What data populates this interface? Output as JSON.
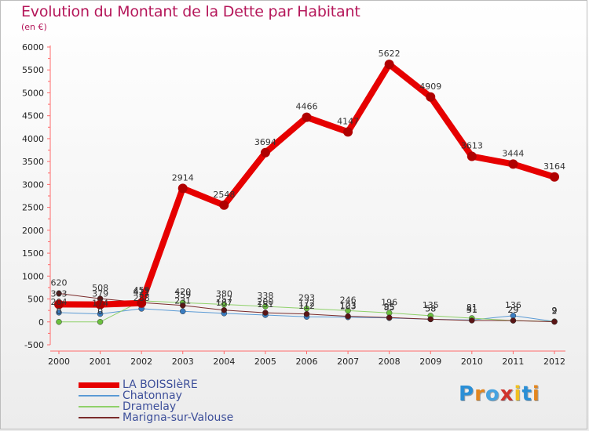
{
  "title": "Evolution du Montant de la Dette par Habitant",
  "unit": "(en €)",
  "logo": {
    "text": "Proxiti",
    "colors": [
      "#2a8fd6",
      "#e3861f",
      "#46a3e0",
      "#d0342c",
      "#f0c020",
      "#2a8fd6",
      "#e3861f"
    ]
  },
  "chart_data": {
    "type": "line",
    "title": "Evolution du Montant de la Dette par Habitant",
    "ylabel": "(en €)",
    "xlabel": "",
    "ylim": [
      -500,
      6000
    ],
    "yticks": [
      -500,
      0,
      500,
      1000,
      1500,
      2000,
      2500,
      3000,
      3500,
      4000,
      4500,
      5000,
      5500,
      6000
    ],
    "categories": [
      "2000",
      "2001",
      "2002",
      "2003",
      "2004",
      "2005",
      "2006",
      "2007",
      "2008",
      "2009",
      "2010",
      "2011",
      "2012"
    ],
    "grid": false,
    "legend": "bottom-left",
    "series": [
      {
        "name": "LA BOISSIèRE",
        "color": "#e60000",
        "marker": "#b00000",
        "width": 8,
        "values": [
          383,
          379,
          411,
          2914,
          2548,
          3694,
          4466,
          4147,
          5622,
          4909,
          3613,
          3444,
          3164
        ],
        "labels": [
          "383",
          "379",
          "411",
          "2914",
          "2548",
          "3694",
          "4466",
          "4147",
          "5622",
          "4909",
          "3613",
          "3444",
          "3164"
        ]
      },
      {
        "name": "Chatonnay",
        "color": "#5b9bd5",
        "marker": "#3a7cc0",
        "width": 1,
        "values": [
          204,
          174,
          288,
          231,
          187,
          151,
          112,
          103,
          85,
          58,
          41,
          136,
          9
        ],
        "labels": [
          "204",
          "174",
          "288",
          "231",
          "187",
          "151",
          "112",
          "103",
          "85",
          "58",
          "41",
          "136",
          "9"
        ]
      },
      {
        "name": "Dramelay",
        "color": "#8fd16a",
        "marker": "#6bbf3f",
        "width": 1,
        "values": [
          0,
          0,
          459,
          420,
          380,
          338,
          293,
          246,
          196,
          135,
          81,
          29,
          9
        ],
        "labels": [
          "0",
          "0",
          "459",
          "420",
          "380",
          "338",
          "293",
          "246",
          "196",
          "135",
          "81",
          "29",
          "9"
        ]
      },
      {
        "name": "Marigna-sur-Valouse",
        "color": "#7a2b2b",
        "marker": "#5a1515",
        "width": 1,
        "values": [
          620,
          508,
          421,
          359,
          257,
          200,
          172,
          123,
          95,
          58,
          31,
          29,
          2
        ],
        "labels": [
          "620",
          "508",
          "421",
          "359",
          "257",
          "200",
          "172",
          "123",
          "95",
          "58",
          "31",
          "29",
          "2"
        ]
      }
    ]
  }
}
